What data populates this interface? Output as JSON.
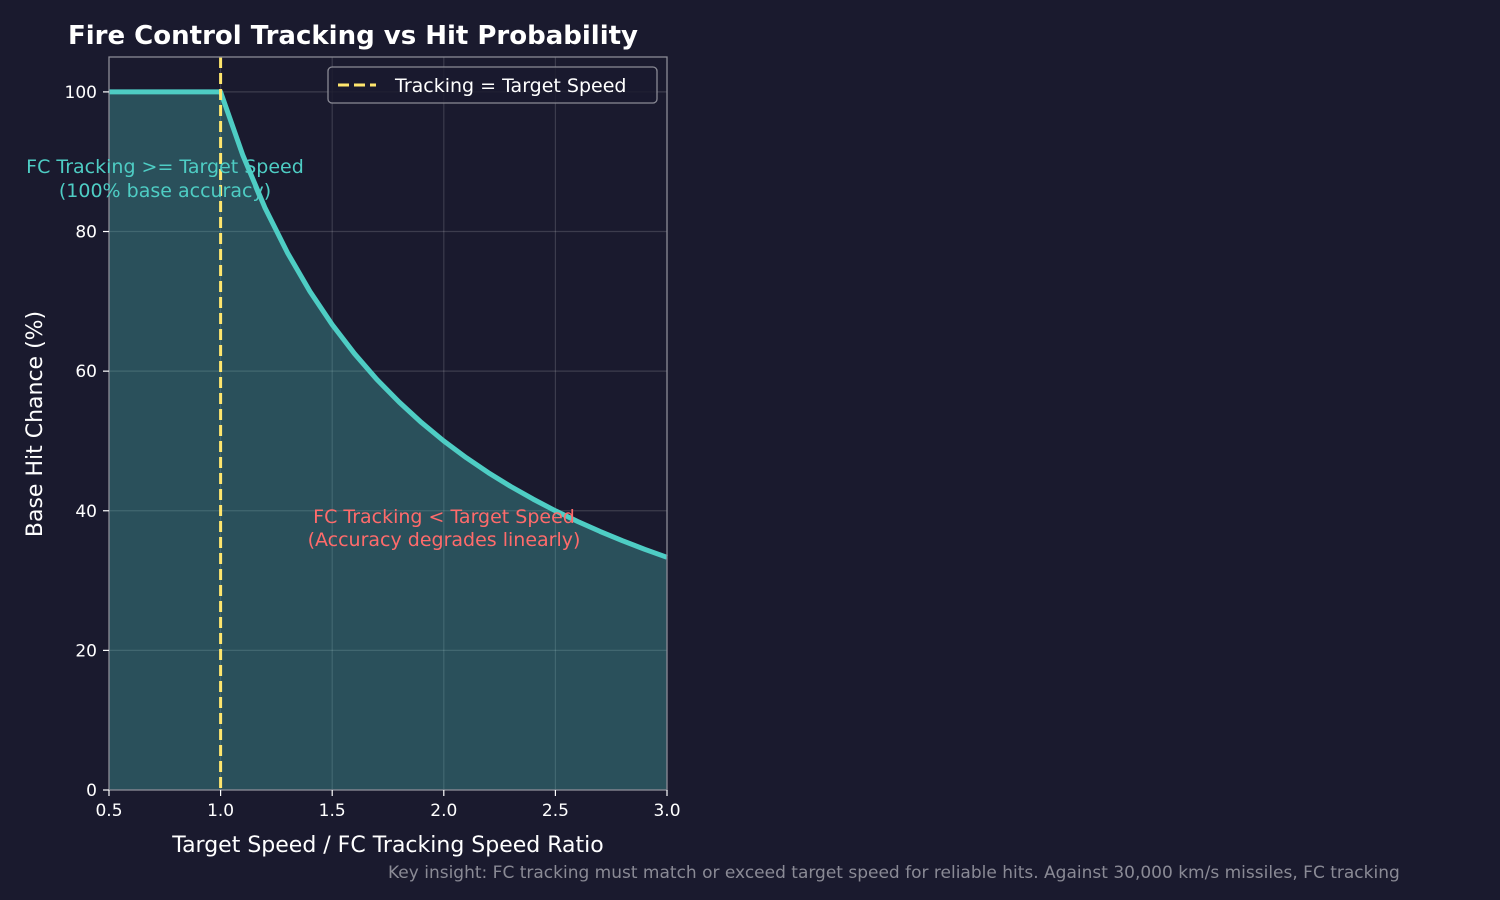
{
  "chart_data": {
    "type": "line",
    "title": "Fire Control Tracking vs Hit Probability",
    "xlabel": "Target Speed / FC Tracking Speed Ratio",
    "ylabel": "Base Hit Chance (%)",
    "xlim": [
      0.5,
      3.0
    ],
    "ylim": [
      0,
      105
    ],
    "xticks": [
      "0.5",
      "1.0",
      "1.5",
      "2.0",
      "2.5",
      "3.0"
    ],
    "yticks": [
      "0",
      "20",
      "40",
      "60",
      "80",
      "100"
    ],
    "grid": true,
    "legend_placement": "top-right",
    "legend": [
      "Tracking = Target Speed"
    ],
    "series": [
      {
        "x": [
          0.5,
          0.6,
          0.7,
          0.8,
          0.9,
          1.0,
          1.1,
          1.2,
          1.3,
          1.4,
          1.5,
          1.6,
          1.7,
          1.8,
          1.9,
          2.0,
          2.1,
          2.2,
          2.3,
          2.4,
          2.5,
          2.6,
          2.7,
          2.8,
          2.9,
          3.0
        ],
        "y": [
          100,
          100,
          100,
          100,
          100,
          100,
          90.91,
          83.33,
          76.92,
          71.43,
          66.67,
          62.5,
          58.82,
          55.56,
          52.63,
          50,
          47.62,
          45.45,
          43.48,
          41.67,
          40,
          38.46,
          37.04,
          35.71,
          34.48,
          33.33
        ],
        "color": "#4ecdc4",
        "filled": true
      }
    ],
    "vline": {
      "x": 1.0,
      "color": "#ffe66d",
      "style": "dashed",
      "label": "Tracking = Target Speed"
    },
    "annotations": [
      {
        "lines": [
          "FC Tracking >= Target Speed",
          "(100% base accuracy)"
        ],
        "color": "#4ecdc4"
      },
      {
        "lines": [
          "FC Tracking < Target Speed",
          "(Accuracy degrades linearly)"
        ],
        "color": "#ff6b6b"
      }
    ]
  },
  "footnote": "Key insight: FC tracking must match or exceed target speed for reliable hits. Against 30,000 km/s missiles, FC tracking",
  "colors": {
    "background": "#1a1a2e",
    "text": "#ffffff",
    "footnote": "#8a8a95"
  }
}
